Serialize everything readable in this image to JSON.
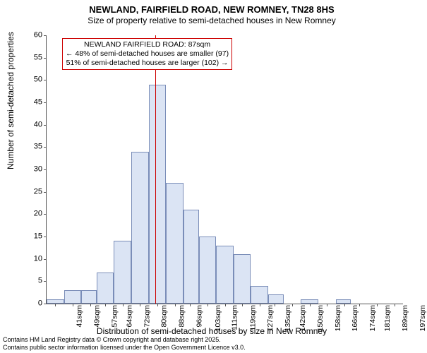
{
  "title": {
    "main": "NEWLAND, FAIRFIELD ROAD, NEW ROMNEY, TN28 8HS",
    "sub": "Size of property relative to semi-detached houses in New Romney"
  },
  "ylabel": "Number of semi-detached properties",
  "xlabel": "Distribution of semi-detached houses by size in New Romney",
  "chart": {
    "type": "histogram",
    "y": {
      "min": 0,
      "max": 60,
      "step": 5
    },
    "x": {
      "ticks": [
        41,
        49,
        57,
        64,
        72,
        80,
        88,
        96,
        103,
        111,
        119,
        127,
        135,
        142,
        150,
        158,
        166,
        174,
        181,
        189,
        197
      ],
      "unit": "sqm",
      "min": 37,
      "max": 201
    },
    "bars": {
      "edges": [
        37,
        45,
        53,
        60,
        68,
        76,
        84,
        92,
        100,
        107,
        115,
        123,
        131,
        139,
        146,
        154,
        162,
        170,
        177,
        185,
        193,
        201
      ],
      "values": [
        1,
        3,
        3,
        7,
        14,
        34,
        49,
        27,
        21,
        15,
        13,
        11,
        4,
        2,
        0,
        1,
        0,
        1,
        0,
        0,
        0
      ],
      "fill_color": "#dbe4f4",
      "border_color": "#7a8db8"
    },
    "marker": {
      "x": 87,
      "color": "#cc0000"
    },
    "annotation": {
      "line1": "NEWLAND FAIRFIELD ROAD: 87sqm",
      "line2": "← 48% of semi-detached houses are smaller (97)",
      "line3": "51% of semi-detached houses are larger (102) →",
      "border_color": "#cc0000"
    },
    "plot_bg": "#ffffff"
  },
  "footer": {
    "line1": "Contains HM Land Registry data © Crown copyright and database right 2025.",
    "line2": "Contains public sector information licensed under the Open Government Licence v3.0."
  }
}
